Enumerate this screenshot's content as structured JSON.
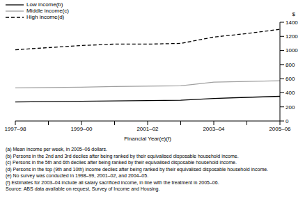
{
  "chart_data": {
    "type": "line",
    "x_label": "Financial Year(e)(f)",
    "y_label": "$",
    "categories": [
      "1997–98",
      null,
      "1999–00",
      null,
      "2001–02",
      null,
      "2003–04",
      null,
      "2005–06"
    ],
    "series": [
      {
        "name": "Low income(b)",
        "color": "#000000",
        "line_style": "solid",
        "values": [
          270,
          275,
          280,
          285,
          290,
          295,
          320,
          335,
          350
        ]
      },
      {
        "name": "Middle income(c)",
        "color": "#a0a0a0",
        "line_style": "solid",
        "values": [
          470,
          475,
          480,
          490,
          495,
          500,
          550,
          560,
          570
        ]
      },
      {
        "name": "High income(d)",
        "color": "#000000",
        "line_style": "dashed",
        "values": [
          1010,
          1040,
          1070,
          1090,
          1090,
          1100,
          1190,
          1240,
          1300
        ]
      }
    ],
    "ylim": [
      0,
      1400
    ],
    "yticks": [
      0,
      200,
      400,
      600,
      800,
      1000,
      1200,
      1400
    ],
    "grid": false,
    "legend": "top-left",
    "notes": [
      "(a) Mean income per week, in 2005–06 dollars.",
      "(b) Persons in the 2nd and 3rd deciles after being ranked by their equivalised disposable household income.",
      "(c) Persons in the 5th and 6th deciles after being ranked by their equivalised disposable household income.",
      "(d) Persons in the top (9th and 10th) income deciles after being ranked by their equivalised disposable household income.",
      "(e) No survey was conducted in 1998–99, 2001–02, and 2004–05.",
      "(f) Estimates for 2003–04 include all salary sacrificed income, in line with the treatment in 2005–06."
    ],
    "source": "Source: ABS data available on request, Survey of Income and Housing."
  }
}
